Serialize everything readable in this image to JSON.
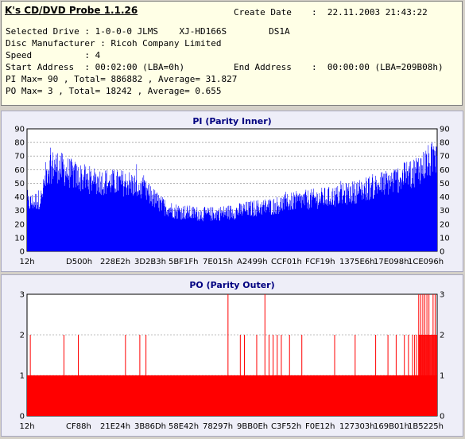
{
  "info": {
    "app_title": "K's CD/DVD Probe 1.1.26",
    "create_date_label": "Create Date",
    "create_date_value": ":  22.11.2003 21:43:22",
    "drive_line": "Selected Drive : 1-0-0-0 JLMS    XJ-HD166S        DS1A",
    "manufacturer_line": "Disc Manufacturer : Ricoh Company Limited",
    "speed_line": "Speed          : 4",
    "start_line": "Start Address  : 00:02:00 (LBA=0h)",
    "end_label": "End Address",
    "end_value": ":  00:00:00 (LBA=209B08h)",
    "pi_line": "PI Max= 90 , Total= 886882 , Average= 31.827",
    "po_line": "PO Max= 3 , Total= 18242 , Average= 0.655"
  },
  "colors": {
    "pi_fill": "#0000ff",
    "po_fill": "#ff0000",
    "title_color": "#000080",
    "plot_bg": "#ffffff",
    "grid": "#808080"
  },
  "chart_data": [
    {
      "type": "bar",
      "title": "PI (Parity Inner)",
      "ylim": [
        0,
        90
      ],
      "yticks": [
        0,
        10,
        20,
        30,
        40,
        50,
        60,
        70,
        80,
        90
      ],
      "xticks": [
        "12h",
        "D500h",
        "228E2h",
        "3D2B3h",
        "5BF1Fh",
        "7E015h",
        "A2499h",
        "CCF01h",
        "FCF19h",
        "1375E6h",
        "17E098h",
        "1CE096h"
      ],
      "grid": true,
      "x_range": [
        "0h",
        "209B08h"
      ],
      "envelope": [
        [
          0,
          40
        ],
        [
          0.02,
          42
        ],
        [
          0.035,
          45
        ],
        [
          0.05,
          70
        ],
        [
          0.07,
          72
        ],
        [
          0.09,
          68
        ],
        [
          0.12,
          63
        ],
        [
          0.15,
          60
        ],
        [
          0.2,
          58
        ],
        [
          0.25,
          57
        ],
        [
          0.28,
          52
        ],
        [
          0.3,
          47
        ],
        [
          0.33,
          38
        ],
        [
          0.36,
          34
        ],
        [
          0.4,
          32
        ],
        [
          0.44,
          31
        ],
        [
          0.5,
          33
        ],
        [
          0.55,
          36
        ],
        [
          0.6,
          38
        ],
        [
          0.65,
          42
        ],
        [
          0.7,
          44
        ],
        [
          0.75,
          46
        ],
        [
          0.8,
          50
        ],
        [
          0.85,
          55
        ],
        [
          0.9,
          60
        ],
        [
          0.94,
          66
        ],
        [
          0.97,
          73
        ],
        [
          1.0,
          80
        ]
      ]
    },
    {
      "type": "bar",
      "title": "PO (Parity Outer)",
      "ylim": [
        0,
        3
      ],
      "yticks": [
        0,
        1,
        2,
        3
      ],
      "xticks": [
        "12h",
        "CF88h",
        "21E24h",
        "3B86Dh",
        "58E42h",
        "78297h",
        "9BB0Eh",
        "C3F52h",
        "F0E12h",
        "127303h",
        "169B01h",
        "1B5225h"
      ],
      "grid": true,
      "baseline_value": 1,
      "spikes_2": [
        0.008,
        0.09,
        0.125,
        0.24,
        0.275,
        0.29,
        0.52,
        0.53,
        0.56,
        0.59,
        0.6,
        0.61,
        0.62,
        0.64,
        0.67,
        0.75,
        0.8,
        0.85,
        0.88,
        0.9,
        0.92,
        0.93,
        0.94,
        0.945,
        0.95,
        0.955,
        0.96
      ],
      "spikes_3": [
        0.49,
        0.58,
        0.955,
        0.96,
        0.965,
        0.97,
        0.975,
        0.98,
        0.99,
        0.995
      ]
    }
  ]
}
